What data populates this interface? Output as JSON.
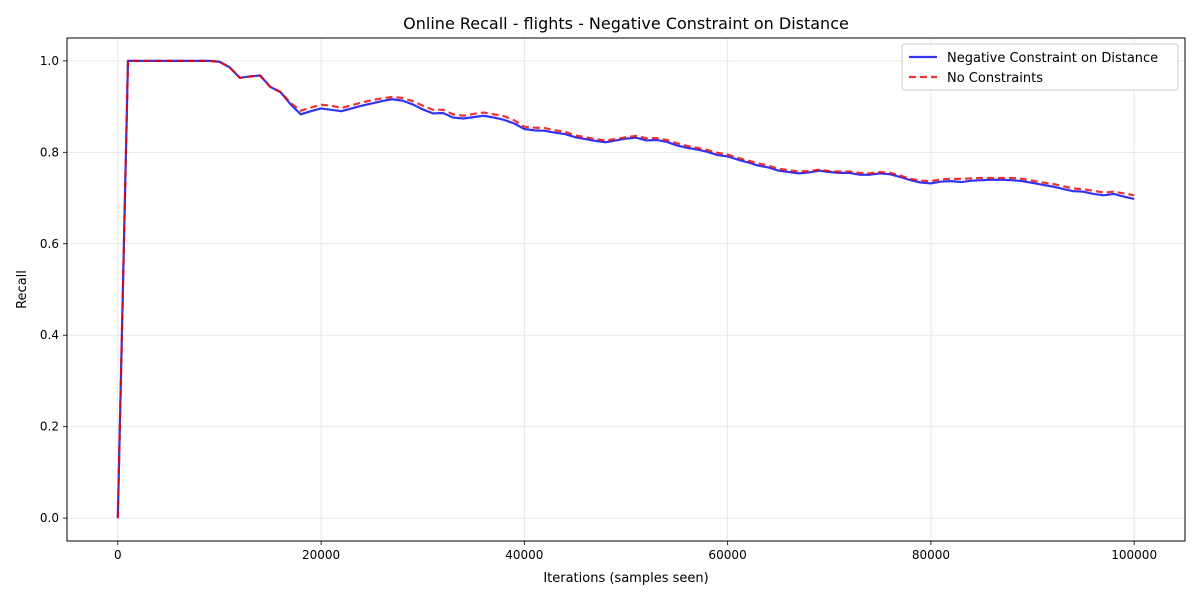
{
  "chart_data": {
    "type": "line",
    "title": "Online Recall - flights - Negative Constraint on Distance",
    "xlabel": "Iterations (samples seen)",
    "ylabel": "Recall",
    "xlim": [
      -5000,
      105000
    ],
    "ylim": [
      -0.05,
      1.05
    ],
    "x_ticks": [
      0,
      20000,
      40000,
      60000,
      80000,
      100000
    ],
    "y_ticks": [
      0.0,
      0.2,
      0.4,
      0.6,
      0.8,
      1.0
    ],
    "x_tick_labels": [
      "0",
      "20000",
      "40000",
      "60000",
      "80000",
      "100000"
    ],
    "y_tick_labels": [
      "0.0",
      "0.2",
      "0.4",
      "0.6",
      "0.8",
      "1.0"
    ],
    "grid": true,
    "legend_position": "top-right",
    "x": [
      0,
      1000,
      2000,
      3000,
      4000,
      5000,
      6000,
      7000,
      8000,
      9000,
      10000,
      11000,
      12000,
      13000,
      14000,
      15000,
      16000,
      17000,
      18000,
      19000,
      20000,
      21000,
      22000,
      23000,
      24000,
      25000,
      26000,
      27000,
      28000,
      29000,
      30000,
      31000,
      32000,
      33000,
      34000,
      35000,
      36000,
      37000,
      38000,
      39000,
      40000,
      41000,
      42000,
      43000,
      44000,
      45000,
      46000,
      47000,
      48000,
      49000,
      50000,
      51000,
      52000,
      53000,
      54000,
      55000,
      56000,
      57000,
      58000,
      59000,
      60000,
      61000,
      62000,
      63000,
      64000,
      65000,
      66000,
      67000,
      68000,
      69000,
      70000,
      71000,
      72000,
      73000,
      74000,
      75000,
      76000,
      77000,
      78000,
      79000,
      80000,
      81000,
      82000,
      83000,
      84000,
      85000,
      86000,
      87000,
      88000,
      89000,
      90000,
      91000,
      92000,
      93000,
      94000,
      95000,
      96000,
      97000,
      98000,
      99000,
      100000
    ],
    "series": [
      {
        "name": "Negative Constraint on Distance",
        "color": "#0000ee",
        "style": "solid",
        "values": [
          0.0,
          1.0,
          1.0,
          1.0,
          1.0,
          1.0,
          1.0,
          1.0,
          1.0,
          1.0,
          0.998,
          0.986,
          0.963,
          0.966,
          0.968,
          0.943,
          0.932,
          0.905,
          0.883,
          0.89,
          0.896,
          0.893,
          0.89,
          0.896,
          0.902,
          0.907,
          0.912,
          0.916,
          0.913,
          0.905,
          0.894,
          0.885,
          0.886,
          0.876,
          0.874,
          0.877,
          0.88,
          0.876,
          0.871,
          0.863,
          0.851,
          0.848,
          0.847,
          0.843,
          0.84,
          0.833,
          0.829,
          0.825,
          0.822,
          0.826,
          0.83,
          0.832,
          0.826,
          0.827,
          0.823,
          0.815,
          0.81,
          0.806,
          0.801,
          0.794,
          0.791,
          0.784,
          0.778,
          0.771,
          0.767,
          0.76,
          0.757,
          0.754,
          0.756,
          0.76,
          0.757,
          0.755,
          0.755,
          0.751,
          0.751,
          0.754,
          0.752,
          0.746,
          0.739,
          0.734,
          0.732,
          0.736,
          0.737,
          0.735,
          0.738,
          0.739,
          0.74,
          0.74,
          0.739,
          0.737,
          0.733,
          0.729,
          0.725,
          0.72,
          0.715,
          0.714,
          0.709,
          0.706,
          0.709,
          0.703,
          0.698
        ]
      },
      {
        "name": "No Constraints",
        "color": "#ee0000",
        "style": "dashed",
        "values": [
          0.0,
          1.0,
          1.0,
          1.0,
          1.0,
          1.0,
          1.0,
          1.0,
          1.0,
          1.0,
          0.998,
          0.986,
          0.963,
          0.966,
          0.968,
          0.943,
          0.932,
          0.908,
          0.891,
          0.898,
          0.904,
          0.902,
          0.897,
          0.903,
          0.909,
          0.914,
          0.918,
          0.921,
          0.919,
          0.912,
          0.902,
          0.893,
          0.893,
          0.883,
          0.88,
          0.884,
          0.887,
          0.883,
          0.879,
          0.87,
          0.856,
          0.854,
          0.853,
          0.848,
          0.845,
          0.837,
          0.833,
          0.829,
          0.826,
          0.829,
          0.833,
          0.836,
          0.831,
          0.831,
          0.827,
          0.82,
          0.814,
          0.81,
          0.805,
          0.799,
          0.795,
          0.788,
          0.782,
          0.776,
          0.771,
          0.764,
          0.761,
          0.758,
          0.759,
          0.762,
          0.759,
          0.758,
          0.758,
          0.755,
          0.754,
          0.757,
          0.755,
          0.749,
          0.742,
          0.738,
          0.737,
          0.741,
          0.742,
          0.742,
          0.743,
          0.744,
          0.744,
          0.744,
          0.744,
          0.742,
          0.738,
          0.734,
          0.731,
          0.726,
          0.721,
          0.719,
          0.716,
          0.712,
          0.714,
          0.71,
          0.706
        ]
      }
    ]
  }
}
